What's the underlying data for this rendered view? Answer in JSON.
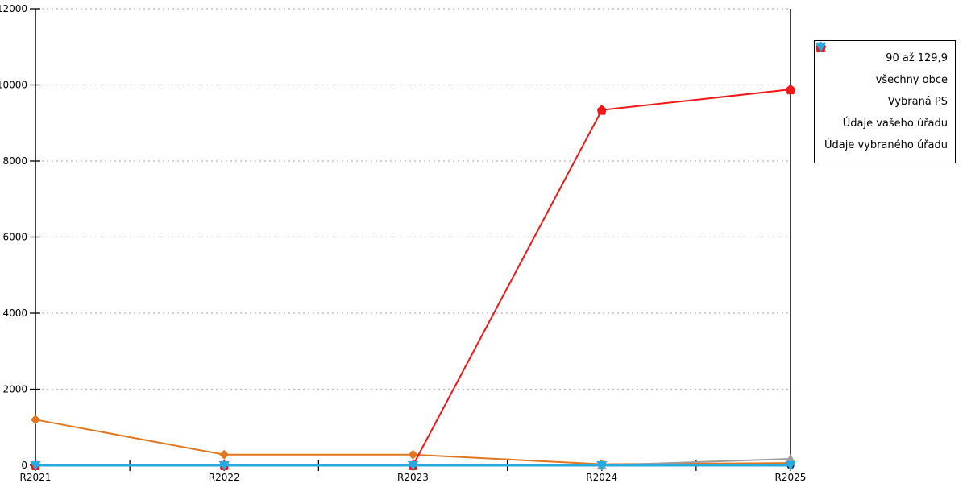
{
  "chart_data": {
    "type": "line",
    "categories": [
      "R2021",
      "R2022",
      "R2023",
      "R2024",
      "R2025"
    ],
    "series": [
      {
        "name": "90 až 129,9",
        "color": "#e0771e",
        "marker": "diamond",
        "line_width": 2,
        "values": [
          1200,
          280,
          280,
          30,
          60
        ]
      },
      {
        "name": "všechny obce",
        "color": "#000000",
        "marker": "circle",
        "line_width": 2,
        "values": [
          0,
          0,
          0,
          0,
          0
        ]
      },
      {
        "name": "Vybraná PS",
        "color": "#9d9d9d",
        "marker": "triangle-up",
        "line_width": 2,
        "values": [
          0,
          0,
          0,
          0,
          170
        ]
      },
      {
        "name": "Údaje vašeho úřadu",
        "color": "#f21616",
        "marker": "pentagon",
        "line_width": 2,
        "values": [
          0,
          0,
          0,
          9340,
          9880
        ]
      },
      {
        "name": "Údaje vybraného úřadu",
        "color": "#27aae1",
        "marker": "triangle-down",
        "line_width": 3,
        "values": [
          0,
          0,
          0,
          0,
          0
        ]
      }
    ],
    "title": "",
    "xlabel": "",
    "ylabel": "",
    "ylim": [
      0,
      12000
    ],
    "ytick_step": 2000,
    "ytick_labels": [
      "0",
      "2000",
      "4000",
      "6000",
      "8000",
      "10000",
      "12000"
    ],
    "grid": "horizontal-dotted",
    "grid_color": "#b8b8b8",
    "axis_color": "#000000",
    "legend_position": "right",
    "legend_order": [
      "90 až 129,9",
      "všechny obce",
      "Vybraná PS",
      "Údaje vašeho úřadu",
      "Údaje vybraného úřadu"
    ]
  }
}
